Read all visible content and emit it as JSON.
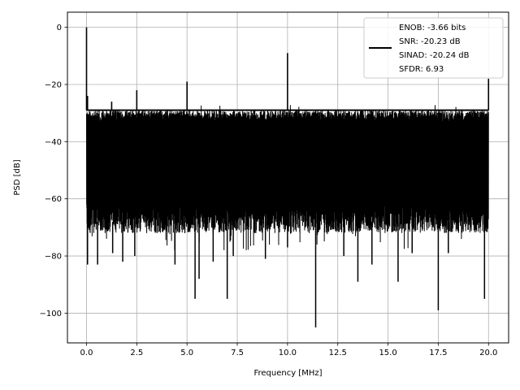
{
  "chart_data": {
    "type": "line",
    "title": "",
    "xlabel": "Frequency [MHz]",
    "ylabel": "PSD [dB]",
    "xlim": [
      -0.95,
      21.0
    ],
    "ylim": [
      -110.4,
      5.3
    ],
    "x_ticks": [
      0,
      2.5,
      5,
      7.5,
      10,
      12.5,
      15,
      17.5,
      20
    ],
    "x_tick_labels": [
      "0.0",
      "2.5",
      "5.0",
      "7.5",
      "10.0",
      "12.5",
      "15.0",
      "17.5",
      "20.0"
    ],
    "y_ticks": [
      0,
      -20,
      -40,
      -60,
      -80,
      -100
    ],
    "y_tick_labels": [
      "0",
      "−20",
      "−40",
      "−60",
      "−80",
      "−100"
    ],
    "grid": true,
    "legend_position": "top-right",
    "legend": [
      "ENOB: -3.66 bits",
      "SNR: -20.23 dB",
      "SINAD: -20.24 dB",
      "SFDR: 6.93"
    ],
    "series_color": "#000000",
    "noise_band": {
      "x_range": [
        0,
        20
      ],
      "upper_db": -29,
      "lower_db": -72
    },
    "peaks": [
      {
        "x": 0.0,
        "y": 0
      },
      {
        "x": 0.05,
        "y": -24
      },
      {
        "x": 1.25,
        "y": -26
      },
      {
        "x": 2.5,
        "y": -22
      },
      {
        "x": 5.0,
        "y": -19
      },
      {
        "x": 10.0,
        "y": -9
      },
      {
        "x": 20.0,
        "y": -18
      }
    ],
    "dips": [
      {
        "x": 0.05,
        "y": -83
      },
      {
        "x": 0.55,
        "y": -83
      },
      {
        "x": 1.3,
        "y": -79
      },
      {
        "x": 1.8,
        "y": -82
      },
      {
        "x": 2.4,
        "y": -80
      },
      {
        "x": 4.4,
        "y": -83
      },
      {
        "x": 5.4,
        "y": -95
      },
      {
        "x": 5.6,
        "y": -88
      },
      {
        "x": 6.3,
        "y": -82
      },
      {
        "x": 7.0,
        "y": -95
      },
      {
        "x": 7.3,
        "y": -80
      },
      {
        "x": 8.9,
        "y": -81
      },
      {
        "x": 10.0,
        "y": -77
      },
      {
        "x": 11.4,
        "y": -105
      },
      {
        "x": 12.8,
        "y": -80
      },
      {
        "x": 13.5,
        "y": -89
      },
      {
        "x": 14.2,
        "y": -83
      },
      {
        "x": 15.5,
        "y": -89
      },
      {
        "x": 16.2,
        "y": -79
      },
      {
        "x": 17.5,
        "y": -99
      },
      {
        "x": 18.0,
        "y": -79
      },
      {
        "x": 19.8,
        "y": -95
      }
    ]
  }
}
